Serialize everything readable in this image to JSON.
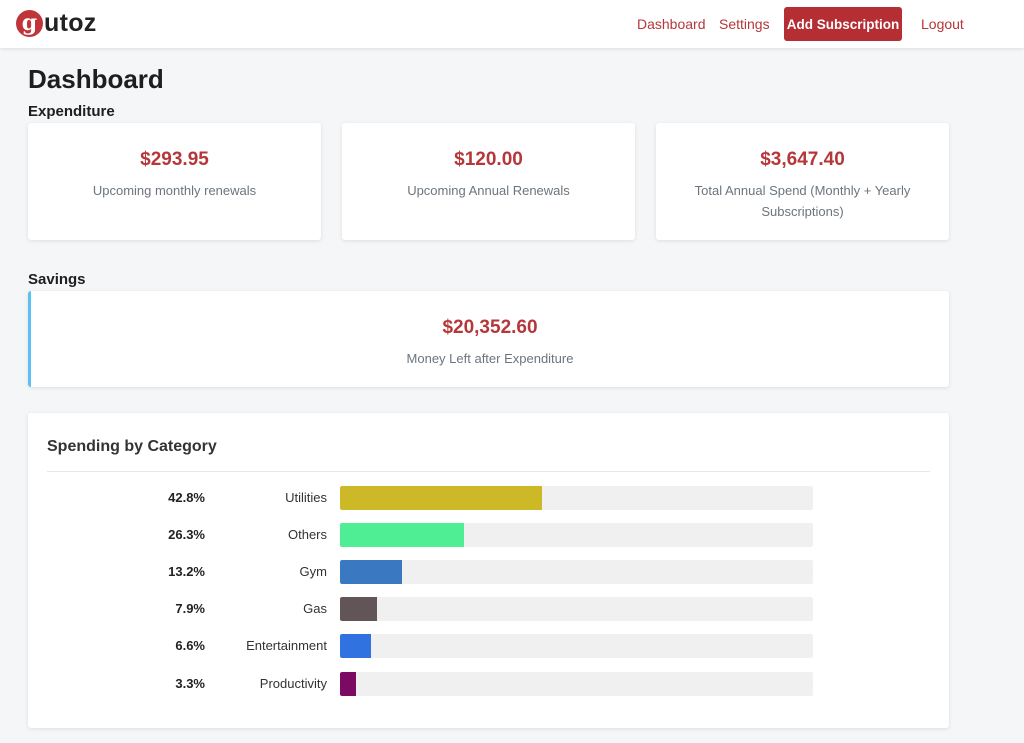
{
  "brand": {
    "mark": "g",
    "text": "utoz"
  },
  "nav": {
    "dashboard": "Dashboard",
    "settings": "Settings",
    "add_subscription": "Add Subscription",
    "logout": "Logout"
  },
  "page_title": "Dashboard",
  "expenditure": {
    "title": "Expenditure",
    "cards": [
      {
        "amount": "$293.95",
        "label": "Upcoming monthly renewals"
      },
      {
        "amount": "$120.00",
        "label": "Upcoming Annual Renewals"
      },
      {
        "amount": "$3,647.40",
        "label": "Total Annual Spend (Monthly + Yearly Subscriptions)"
      }
    ]
  },
  "savings": {
    "title": "Savings",
    "amount": "$20,352.60",
    "label": "Money Left after Expenditure"
  },
  "spending": {
    "title": "Spending by Category",
    "categories": [
      {
        "pct_label": "42.8%",
        "name": "Utilities",
        "value": 42.8,
        "color": "#cdb928"
      },
      {
        "pct_label": "26.3%",
        "name": "Others",
        "value": 26.3,
        "color": "#4fee94"
      },
      {
        "pct_label": "13.2%",
        "name": "Gym",
        "value": 13.2,
        "color": "#3a78c2"
      },
      {
        "pct_label": "7.9%",
        "name": "Gas",
        "value": 7.9,
        "color": "#625558"
      },
      {
        "pct_label": "6.6%",
        "name": "Entertainment",
        "value": 6.6,
        "color": "#2f72e0"
      },
      {
        "pct_label": "3.3%",
        "name": "Productivity",
        "value": 3.3,
        "color": "#7a0a64"
      }
    ]
  },
  "colors": {
    "accent": "#b5373a",
    "button": "#b42e33",
    "savings_border": "#5bc0f2"
  }
}
